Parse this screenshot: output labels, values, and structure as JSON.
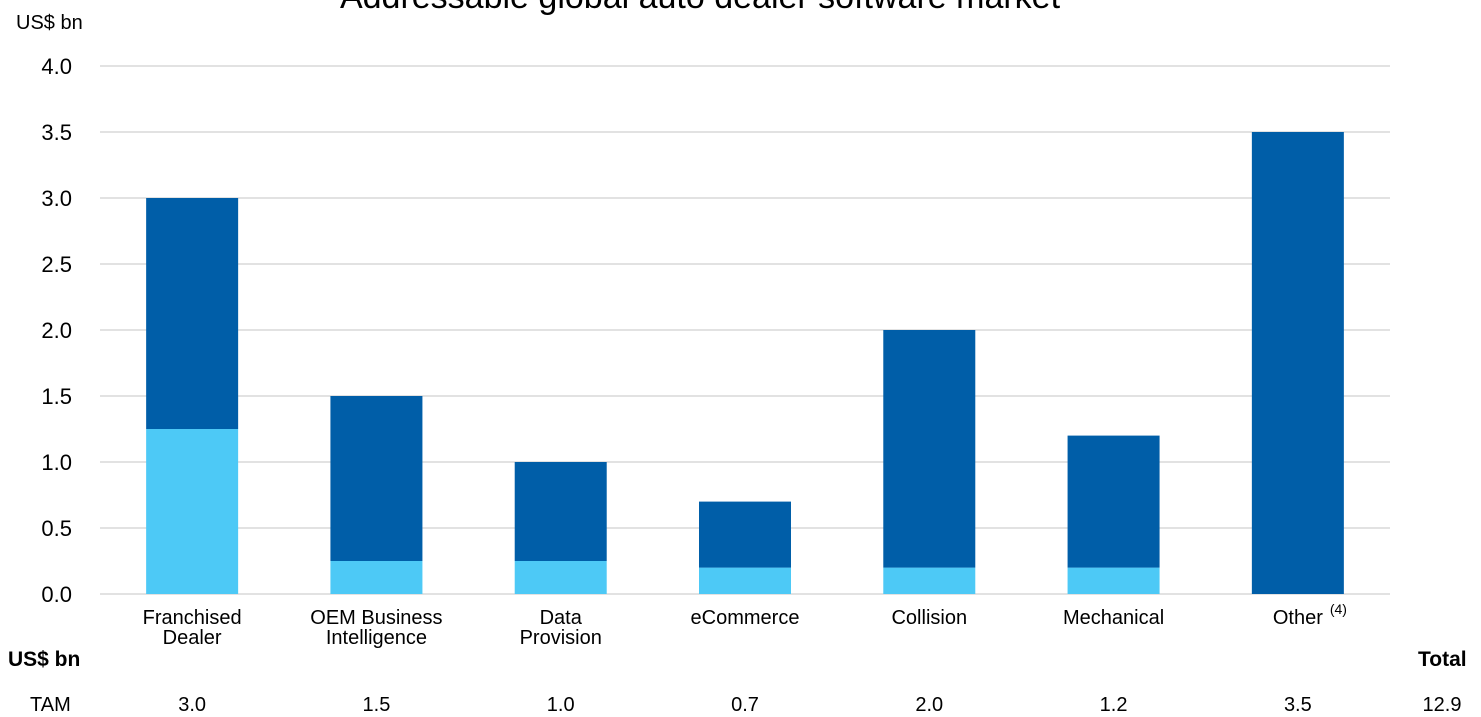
{
  "chart_data": {
    "type": "bar",
    "stacked": true,
    "title": "Addressable global auto dealer software market",
    "ylabel": "US$ bn",
    "ylim": [
      0,
      4.0
    ],
    "yticks": [
      "4.0",
      "3.5",
      "3.0",
      "2.5",
      "2.0",
      "1.5",
      "1.0",
      "0.5",
      "0.0"
    ],
    "grid": true,
    "categories": [
      [
        "Franchised",
        "Dealer"
      ],
      [
        "OEM Business",
        "Intelligence"
      ],
      [
        "Data",
        "Provision"
      ],
      [
        "eCommerce"
      ],
      [
        "Collision"
      ],
      [
        "Mechanical"
      ],
      [
        "Other"
      ]
    ],
    "category_footnotes": [
      "",
      "",
      "",
      "",
      "",
      "",
      "(4)"
    ],
    "series": [
      {
        "color": "#4DC9F6",
        "values": [
          1.25,
          0.25,
          0.25,
          0.2,
          0.2,
          0.2,
          0.0
        ]
      },
      {
        "color": "#005EA8",
        "values": [
          1.75,
          1.25,
          0.75,
          0.5,
          1.8,
          1.0,
          3.5
        ]
      }
    ]
  },
  "table": {
    "header_unit": "US$ bn",
    "header_total": "Total",
    "row_label": "TAM",
    "values": [
      "3.0",
      "1.5",
      "1.0",
      "0.7",
      "2.0",
      "1.2",
      "3.5"
    ],
    "total": "12.9"
  }
}
